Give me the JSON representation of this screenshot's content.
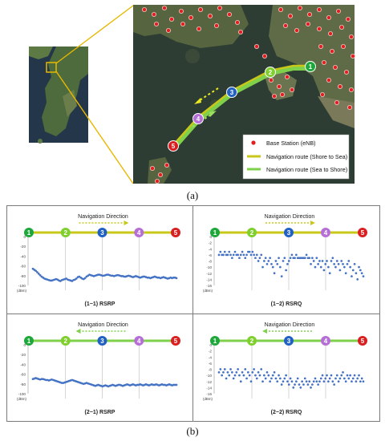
{
  "figure": {
    "caption_a": "(a)",
    "caption_b": "(b)"
  },
  "map": {
    "legend": {
      "base_station": "Base Station (eNB)",
      "route_shore_to_sea": "Navigation route (Shore to Sea)",
      "route_sea_to_shore": "Navigation route (Sea to Shore)"
    },
    "waypoints": [
      "1",
      "2",
      "3",
      "4",
      "5"
    ],
    "colors": {
      "sea": "#2e3d34",
      "land": "#5f6d4a",
      "route_shore_to_sea": "#c8c81a",
      "route_sea_to_shore": "#7fd04a",
      "base_station": "#e02020",
      "callout": "#e8b800"
    }
  },
  "waypoint_colors": [
    "#1ea83c",
    "#7fcf2e",
    "#2161c4",
    "#b56fd6",
    "#d91f1f"
  ],
  "navigation_label": "Navigation Direction",
  "chart_data": [
    {
      "type": "scatter",
      "title": "(1−1) RSRP",
      "unit": "(dBm)",
      "route_color": "#c8c81a",
      "arrow_direction": "right",
      "y_ticks": [
        "0",
        "-20",
        "-40",
        "-60",
        "-80",
        "-100"
      ],
      "ylim": [
        -100,
        0
      ],
      "x": [
        1,
        3,
        5,
        7,
        9,
        11,
        13,
        15,
        17,
        19,
        21,
        23,
        25,
        27,
        29,
        31,
        33,
        35,
        37,
        39,
        41,
        43,
        45,
        47,
        49,
        51,
        53,
        55,
        57,
        59,
        61,
        63,
        65,
        67,
        69,
        71,
        73,
        75,
        77,
        79,
        81,
        83,
        85,
        87,
        89,
        91,
        93,
        95,
        97,
        99,
        101,
        103,
        105,
        107,
        109,
        111,
        113,
        115,
        117,
        119,
        121,
        123,
        125,
        127,
        129,
        131,
        133,
        135,
        137,
        139,
        141,
        143,
        145,
        147,
        149,
        151,
        153,
        155,
        157,
        159,
        161,
        163,
        165,
        167,
        169,
        171,
        173,
        175,
        177,
        179,
        181,
        183,
        185,
        187,
        189,
        191,
        193,
        195,
        197,
        199
      ],
      "y": [
        -66,
        -68,
        -70,
        -73,
        -76,
        -79,
        -82,
        -84,
        -86,
        -87,
        -88,
        -89,
        -90,
        -90,
        -89,
        -88,
        -87,
        -88,
        -90,
        -91,
        -89,
        -88,
        -87,
        -86,
        -88,
        -89,
        -90,
        -91,
        -89,
        -88,
        -86,
        -83,
        -82,
        -84,
        -86,
        -87,
        -85,
        -82,
        -80,
        -78,
        -79,
        -80,
        -81,
        -80,
        -79,
        -78,
        -78,
        -79,
        -80,
        -80,
        -79,
        -78,
        -78,
        -79,
        -80,
        -80,
        -81,
        -80,
        -79,
        -79,
        -80,
        -81,
        -81,
        -82,
        -82,
        -81,
        -80,
        -81,
        -82,
        -83,
        -82,
        -81,
        -82,
        -83,
        -84,
        -83,
        -82,
        -82,
        -83,
        -84,
        -84,
        -85,
        -84,
        -83,
        -82,
        -83,
        -84,
        -84,
        -85,
        -84,
        -83,
        -84,
        -85,
        -86,
        -85,
        -84,
        -85,
        -84,
        -84,
        -85
      ]
    },
    {
      "type": "scatter",
      "title": "(1−2) RSRQ",
      "unit": "(dBm)",
      "route_color": "#c8c81a",
      "arrow_direction": "right",
      "y_ticks": [
        "0",
        "-2",
        "-4",
        "-6",
        "-8",
        "-10",
        "-12",
        "-14",
        "-16"
      ],
      "ylim": [
        -16,
        0
      ],
      "x": [
        1,
        3,
        5,
        7,
        9,
        11,
        13,
        15,
        17,
        19,
        21,
        23,
        25,
        27,
        29,
        31,
        33,
        35,
        37,
        39,
        41,
        43,
        45,
        47,
        49,
        51,
        53,
        55,
        57,
        59,
        61,
        63,
        65,
        67,
        69,
        71,
        73,
        75,
        77,
        79,
        81,
        83,
        85,
        87,
        89,
        91,
        93,
        95,
        97,
        99,
        101,
        103,
        105,
        107,
        109,
        111,
        113,
        115,
        117,
        119,
        121,
        123,
        125,
        127,
        129,
        131,
        133,
        135,
        137,
        139,
        141,
        143,
        145,
        147,
        149,
        151,
        153,
        155,
        157,
        159,
        161,
        163,
        165,
        167,
        169,
        171,
        173,
        175,
        177,
        179,
        181,
        183,
        185,
        187,
        189,
        191,
        193,
        195,
        197,
        199
      ],
      "y": [
        -6,
        -5,
        -6,
        -6,
        -5,
        -6,
        -6,
        -5,
        -6,
        -7,
        -6,
        -5,
        -6,
        -6,
        -7,
        -6,
        -5,
        -6,
        -7,
        -6,
        -5,
        -5,
        -6,
        -5,
        -6,
        -7,
        -6,
        -8,
        -7,
        -6,
        -10,
        -8,
        -7,
        -9,
        -8,
        -7,
        -9,
        -10,
        -12,
        -8,
        -9,
        -7,
        -10,
        -13,
        -8,
        -7,
        -11,
        -9,
        -8,
        -7,
        -6,
        -7,
        -7,
        -6,
        -7,
        -7,
        -7,
        -7,
        -7,
        -7,
        -6,
        -7,
        -7,
        -9,
        -7,
        -8,
        -10,
        -7,
        -9,
        -8,
        -10,
        -8,
        -11,
        -9,
        -8,
        -10,
        -12,
        -8,
        -7,
        -9,
        -10,
        -8,
        -9,
        -11,
        -8,
        -9,
        -10,
        -12,
        -9,
        -8,
        -10,
        -13,
        -11,
        -9,
        -12,
        -14,
        -10,
        -11,
        -12,
        -13
      ]
    },
    {
      "type": "scatter",
      "title": "(2−1) RSRP",
      "unit": "(dBm)",
      "route_color": "#7fd04a",
      "arrow_direction": "left",
      "y_ticks": [
        "0",
        "-20",
        "-40",
        "-60",
        "-80",
        "-100"
      ],
      "ylim": [
        -100,
        0
      ],
      "x": [
        1,
        3,
        5,
        7,
        9,
        11,
        13,
        15,
        17,
        19,
        21,
        23,
        25,
        27,
        29,
        31,
        33,
        35,
        37,
        39,
        41,
        43,
        45,
        47,
        49,
        51,
        53,
        55,
        57,
        59,
        61,
        63,
        65,
        67,
        69,
        71,
        73,
        75,
        77,
        79,
        81,
        83,
        85,
        87,
        89,
        91,
        93,
        95,
        97,
        99,
        101,
        103,
        105,
        107,
        109,
        111,
        113,
        115,
        117,
        119,
        121,
        123,
        125,
        127,
        129,
        131,
        133,
        135,
        137,
        139,
        141,
        143,
        145,
        147,
        149,
        151,
        153,
        155,
        157,
        159,
        161,
        163,
        165,
        167,
        169,
        171,
        173,
        175,
        177,
        179,
        181,
        183,
        185,
        187,
        189,
        191,
        193,
        195,
        197,
        199
      ],
      "y": [
        -70,
        -69,
        -68,
        -69,
        -70,
        -71,
        -70,
        -70,
        -71,
        -72,
        -72,
        -73,
        -72,
        -71,
        -72,
        -73,
        -74,
        -75,
        -76,
        -77,
        -78,
        -78,
        -77,
        -76,
        -75,
        -74,
        -73,
        -72,
        -73,
        -74,
        -75,
        -76,
        -77,
        -78,
        -79,
        -80,
        -79,
        -78,
        -79,
        -80,
        -81,
        -82,
        -83,
        -84,
        -83,
        -82,
        -83,
        -84,
        -85,
        -84,
        -83,
        -84,
        -85,
        -84,
        -83,
        -82,
        -83,
        -84,
        -83,
        -82,
        -82,
        -83,
        -84,
        -83,
        -82,
        -81,
        -82,
        -83,
        -82,
        -81,
        -82,
        -83,
        -82,
        -82,
        -81,
        -82,
        -83,
        -82,
        -81,
        -82,
        -83,
        -82,
        -81,
        -82,
        -82,
        -81,
        -82,
        -83,
        -82,
        -81,
        -82,
        -82,
        -83,
        -82,
        -81,
        -82,
        -83,
        -82,
        -82,
        -82
      ]
    },
    {
      "type": "scatter",
      "title": "(2−2) RSRQ",
      "unit": "(dBm)",
      "route_color": "#7fd04a",
      "arrow_direction": "left",
      "y_ticks": [
        "0",
        "-2",
        "-4",
        "-6",
        "-8",
        "-10",
        "-12",
        "-14",
        "-16"
      ],
      "ylim": [
        -16,
        0
      ],
      "x": [
        1,
        3,
        5,
        7,
        9,
        11,
        13,
        15,
        17,
        19,
        21,
        23,
        25,
        27,
        29,
        31,
        33,
        35,
        37,
        39,
        41,
        43,
        45,
        47,
        49,
        51,
        53,
        55,
        57,
        59,
        61,
        63,
        65,
        67,
        69,
        71,
        73,
        75,
        77,
        79,
        81,
        83,
        85,
        87,
        89,
        91,
        93,
        95,
        97,
        99,
        101,
        103,
        105,
        107,
        109,
        111,
        113,
        115,
        117,
        119,
        121,
        123,
        125,
        127,
        129,
        131,
        133,
        135,
        137,
        139,
        141,
        143,
        145,
        147,
        149,
        151,
        153,
        155,
        157,
        159,
        161,
        163,
        165,
        167,
        169,
        171,
        173,
        175,
        177,
        179,
        181,
        183,
        185,
        187,
        189,
        191,
        193,
        195,
        197,
        199
      ],
      "y": [
        -9,
        -8,
        -10,
        -9,
        -8,
        -11,
        -9,
        -10,
        -8,
        -9,
        -11,
        -10,
        -9,
        -8,
        -10,
        -12,
        -9,
        -10,
        -8,
        -11,
        -9,
        -10,
        -12,
        -9,
        -8,
        -10,
        -11,
        -9,
        -10,
        -8,
        -12,
        -10,
        -11,
        -9,
        -10,
        -12,
        -11,
        -10,
        -9,
        -11,
        -12,
        -10,
        -11,
        -13,
        -12,
        -11,
        -10,
        -12,
        -13,
        -11,
        -12,
        -14,
        -13,
        -12,
        -11,
        -13,
        -14,
        -12,
        -13,
        -11,
        -12,
        -13,
        -12,
        -14,
        -13,
        -12,
        -11,
        -12,
        -13,
        -12,
        -11,
        -10,
        -12,
        -11,
        -10,
        -12,
        -11,
        -10,
        -12,
        -13,
        -11,
        -10,
        -12,
        -11,
        -10,
        -9,
        -11,
        -12,
        -10,
        -11,
        -10,
        -12,
        -11,
        -10,
        -12,
        -11,
        -10,
        -12,
        -11,
        -12
      ]
    }
  ]
}
